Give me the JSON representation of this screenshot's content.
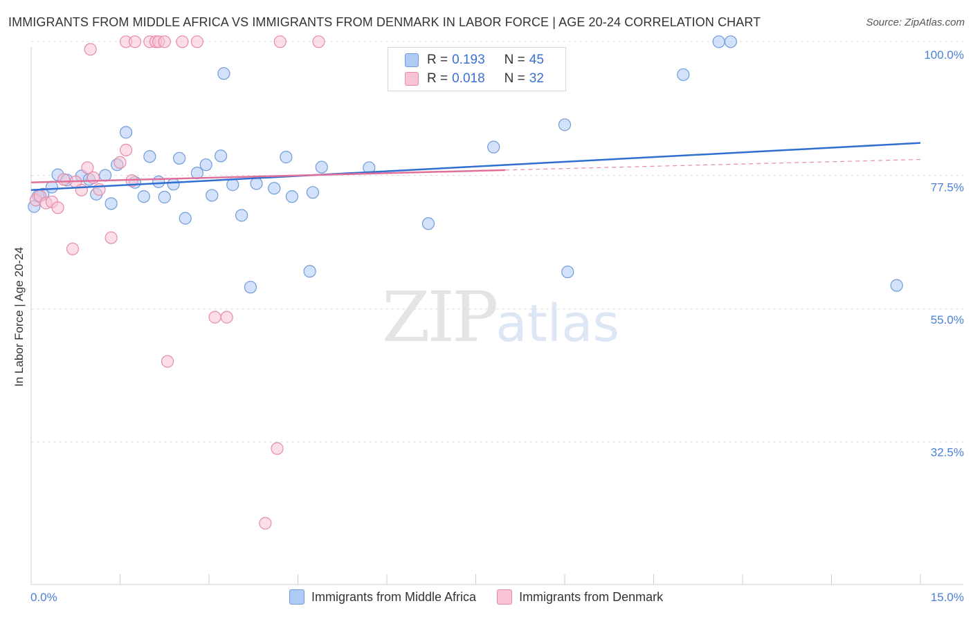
{
  "title": "IMMIGRANTS FROM MIDDLE AFRICA VS IMMIGRANTS FROM DENMARK IN LABOR FORCE | AGE 20-24 CORRELATION CHART",
  "source": "Source: ZipAtlas.com",
  "watermark": {
    "zip": "ZIP",
    "atlas": "atlas"
  },
  "legend": {
    "r_label": "R =",
    "n_label": "N =",
    "rows": [
      {
        "r": "0.193",
        "n": "45",
        "color": "#aecbf5",
        "border": "#6f9bd8"
      },
      {
        "r": "0.018",
        "n": "32",
        "color": "#f8c3d3",
        "border": "#e58aa8"
      }
    ]
  },
  "bottom_legend": [
    {
      "label": "Immigrants from Middle Africa",
      "color": "#aecbf5",
      "border": "#6f9bd8"
    },
    {
      "label": "Immigrants from Denmark",
      "color": "#f8c3d3",
      "border": "#e58aa8"
    }
  ],
  "chart_data": {
    "type": "scatter",
    "xlabel": "",
    "ylabel": "In Labor Force | Age 20-24",
    "xlim": [
      0,
      15
    ],
    "ylim": [
      10,
      102
    ],
    "x_tick_labels": [
      {
        "value": 0,
        "label": "0.0%"
      },
      {
        "value": 15,
        "label": "15.0%"
      }
    ],
    "y_tick_labels": [
      {
        "value": 100,
        "label": "100.0%"
      },
      {
        "value": 77.5,
        "label": "77.5%"
      },
      {
        "value": 55,
        "label": "55.0%"
      },
      {
        "value": 32.5,
        "label": "32.5%"
      }
    ],
    "grid_y": [
      102.2,
      79.5,
      56.8,
      34.2
    ],
    "series": [
      {
        "name": "Immigrants from Middle Africa",
        "color": "#aecbf5",
        "stroke": "#6f9bd8",
        "points": [
          [
            0.05,
            74.2
          ],
          [
            0.2,
            76.3
          ],
          [
            0.35,
            77.5
          ],
          [
            0.45,
            79.6
          ],
          [
            0.6,
            78.7
          ],
          [
            0.85,
            79.4
          ],
          [
            0.98,
            78.8
          ],
          [
            1.1,
            76.3
          ],
          [
            1.25,
            79.5
          ],
          [
            1.35,
            74.7
          ],
          [
            1.45,
            81.3
          ],
          [
            1.6,
            86.8
          ],
          [
            1.75,
            78.3
          ],
          [
            1.9,
            75.9
          ],
          [
            2.0,
            82.7
          ],
          [
            2.15,
            78.4
          ],
          [
            2.25,
            75.8
          ],
          [
            2.4,
            78.0
          ],
          [
            2.5,
            82.4
          ],
          [
            2.6,
            72.2
          ],
          [
            2.8,
            79.9
          ],
          [
            2.95,
            81.3
          ],
          [
            3.05,
            76.1
          ],
          [
            3.2,
            82.8
          ],
          [
            3.25,
            96.8
          ],
          [
            3.4,
            77.9
          ],
          [
            3.55,
            72.7
          ],
          [
            3.7,
            60.5
          ],
          [
            3.8,
            78.1
          ],
          [
            4.1,
            77.3
          ],
          [
            4.3,
            82.6
          ],
          [
            4.4,
            75.9
          ],
          [
            4.7,
            63.2
          ],
          [
            4.75,
            76.6
          ],
          [
            4.9,
            80.9
          ],
          [
            5.7,
            80.8
          ],
          [
            6.7,
            71.3
          ],
          [
            7.8,
            84.3
          ],
          [
            9.0,
            88.1
          ],
          [
            9.05,
            63.1
          ],
          [
            11.0,
            96.6
          ],
          [
            11.6,
            102.2
          ],
          [
            11.8,
            102.2
          ],
          [
            14.6,
            60.8
          ],
          [
            0.12,
            76.0
          ]
        ],
        "trend": {
          "x0": 0,
          "y0": 77.0,
          "x1": 15,
          "y1": 85.0
        }
      },
      {
        "name": "Immigrants from Denmark",
        "color": "#f8c3d3",
        "stroke": "#e58aa8",
        "points": [
          [
            0.08,
            75.3
          ],
          [
            0.15,
            76.0
          ],
          [
            0.25,
            74.8
          ],
          [
            0.35,
            75.0
          ],
          [
            0.45,
            74.0
          ],
          [
            0.55,
            78.8
          ],
          [
            0.7,
            67.0
          ],
          [
            0.75,
            78.4
          ],
          [
            0.85,
            77.0
          ],
          [
            0.95,
            80.8
          ],
          [
            1.05,
            79.1
          ],
          [
            1.15,
            77.1
          ],
          [
            1.35,
            68.9
          ],
          [
            1.5,
            81.7
          ],
          [
            1.6,
            83.8
          ],
          [
            1.7,
            78.6
          ],
          [
            1.0,
            100.9
          ],
          [
            1.6,
            102.2
          ],
          [
            2.0,
            102.2
          ],
          [
            2.1,
            102.2
          ],
          [
            2.15,
            102.2
          ],
          [
            2.25,
            102.2
          ],
          [
            2.55,
            102.2
          ],
          [
            2.8,
            102.2
          ],
          [
            4.2,
            102.2
          ],
          [
            4.85,
            102.2
          ],
          [
            3.1,
            55.4
          ],
          [
            3.3,
            55.4
          ],
          [
            2.3,
            47.9
          ],
          [
            4.15,
            33.1
          ],
          [
            3.95,
            20.4
          ],
          [
            1.75,
            102.2
          ]
        ],
        "trend": {
          "x0": 0,
          "y0": 78.3,
          "x1": 8.0,
          "y1": 80.4
        },
        "trend_dashed": {
          "x0": 8.0,
          "y0": 80.4,
          "x1": 15,
          "y1": 82.2
        }
      }
    ]
  }
}
